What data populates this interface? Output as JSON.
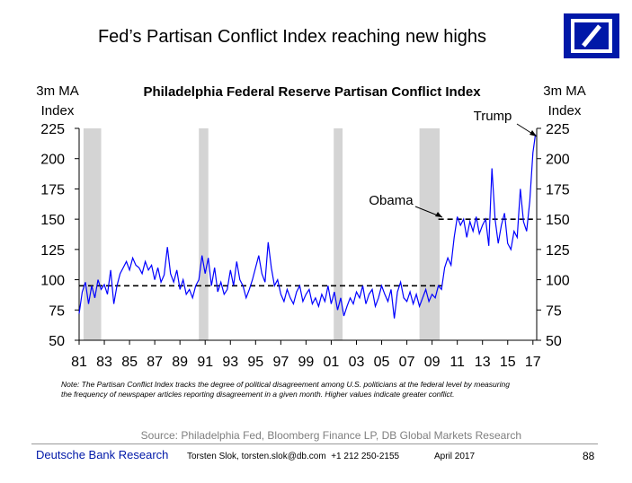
{
  "slide_title": "Fed’s Partisan Conflict Index reaching new highs",
  "chart_data": {
    "type": "line",
    "title": "Philadelphia Federal Reserve Partisan Conflict Index",
    "y_label": "3m MA\nIndex",
    "y2_label": "3m MA\nIndex",
    "color": "#0000ff",
    "x": [
      1981.0,
      1981.25,
      1981.5,
      1981.75,
      1982.0,
      1982.25,
      1982.5,
      1982.75,
      1983.0,
      1983.25,
      1983.5,
      1983.75,
      1984.0,
      1984.25,
      1984.5,
      1984.75,
      1985.0,
      1985.25,
      1985.5,
      1985.75,
      1986.0,
      1986.25,
      1986.5,
      1986.75,
      1987.0,
      1987.25,
      1987.5,
      1987.75,
      1988.0,
      1988.25,
      1988.5,
      1988.75,
      1989.0,
      1989.25,
      1989.5,
      1989.75,
      1990.0,
      1990.25,
      1990.5,
      1990.75,
      1991.0,
      1991.25,
      1991.5,
      1991.75,
      1992.0,
      1992.25,
      1992.5,
      1992.75,
      1993.0,
      1993.25,
      1993.5,
      1993.75,
      1994.0,
      1994.25,
      1994.5,
      1994.75,
      1995.0,
      1995.25,
      1995.5,
      1995.75,
      1996.0,
      1996.25,
      1996.5,
      1996.75,
      1997.0,
      1997.25,
      1997.5,
      1997.75,
      1998.0,
      1998.25,
      1998.5,
      1998.75,
      1999.0,
      1999.25,
      1999.5,
      1999.75,
      2000.0,
      2000.25,
      2000.5,
      2000.75,
      2001.0,
      2001.25,
      2001.5,
      2001.75,
      2002.0,
      2002.25,
      2002.5,
      2002.75,
      2003.0,
      2003.25,
      2003.5,
      2003.75,
      2004.0,
      2004.25,
      2004.5,
      2004.75,
      2005.0,
      2005.25,
      2005.5,
      2005.75,
      2006.0,
      2006.25,
      2006.5,
      2006.75,
      2007.0,
      2007.25,
      2007.5,
      2007.75,
      2008.0,
      2008.25,
      2008.5,
      2008.75,
      2009.0,
      2009.25,
      2009.5,
      2009.75,
      2010.0,
      2010.25,
      2010.5,
      2010.75,
      2011.0,
      2011.25,
      2011.5,
      2011.75,
      2012.0,
      2012.25,
      2012.5,
      2012.75,
      2013.0,
      2013.25,
      2013.5,
      2013.75,
      2014.0,
      2014.25,
      2014.5,
      2014.75,
      2015.0,
      2015.25,
      2015.5,
      2015.75,
      2016.0,
      2016.25,
      2016.5,
      2016.75,
      2017.0,
      2017.2
    ],
    "values": [
      72,
      90,
      98,
      80,
      95,
      85,
      100,
      92,
      96,
      88,
      108,
      80,
      95,
      105,
      110,
      115,
      108,
      118,
      112,
      110,
      105,
      115,
      108,
      112,
      100,
      110,
      98,
      104,
      127,
      105,
      98,
      108,
      92,
      100,
      88,
      92,
      85,
      95,
      100,
      120,
      105,
      118,
      95,
      110,
      90,
      98,
      88,
      92,
      108,
      95,
      115,
      100,
      95,
      85,
      92,
      100,
      110,
      120,
      105,
      98,
      131,
      110,
      95,
      100,
      88,
      82,
      92,
      85,
      80,
      90,
      95,
      82,
      88,
      92,
      80,
      85,
      78,
      88,
      82,
      95,
      80,
      90,
      75,
      85,
      70,
      78,
      85,
      80,
      90,
      85,
      95,
      80,
      88,
      92,
      78,
      85,
      95,
      88,
      82,
      92,
      68,
      90,
      98,
      85,
      82,
      90,
      80,
      88,
      78,
      85,
      92,
      82,
      88,
      85,
      95,
      92,
      110,
      118,
      112,
      135,
      152,
      145,
      150,
      135,
      148,
      140,
      152,
      138,
      145,
      150,
      128,
      192,
      150,
      130,
      145,
      155,
      130,
      125,
      140,
      135,
      175,
      148,
      140,
      165,
      205,
      220
    ],
    "xlim": [
      1981,
      2017.3
    ],
    "xticks": [
      {
        "value": 1981,
        "label": "81"
      },
      {
        "value": 1983,
        "label": "83"
      },
      {
        "value": 1985,
        "label": "85"
      },
      {
        "value": 1987,
        "label": "87"
      },
      {
        "value": 1989,
        "label": "89"
      },
      {
        "value": 1991,
        "label": "91"
      },
      {
        "value": 1993,
        "label": "93"
      },
      {
        "value": 1995,
        "label": "95"
      },
      {
        "value": 1997,
        "label": "97"
      },
      {
        "value": 1999,
        "label": "99"
      },
      {
        "value": 2001,
        "label": "01"
      },
      {
        "value": 2003,
        "label": "03"
      },
      {
        "value": 2005,
        "label": "05"
      },
      {
        "value": 2007,
        "label": "07"
      },
      {
        "value": 2009,
        "label": "09"
      },
      {
        "value": 2011,
        "label": "11"
      },
      {
        "value": 2013,
        "label": "13"
      },
      {
        "value": 2015,
        "label": "15"
      },
      {
        "value": 2017,
        "label": "17"
      }
    ],
    "ylim": [
      50,
      225
    ],
    "yticks": [
      50,
      75,
      100,
      125,
      150,
      175,
      200,
      225
    ],
    "y2lim": [
      50,
      225
    ],
    "y2ticks": [
      50,
      75,
      100,
      125,
      150,
      175,
      200,
      225
    ],
    "grid": false,
    "shaded_periods": [
      {
        "start": 1981.35,
        "end": 1982.75
      },
      {
        "start": 1990.5,
        "end": 1991.25
      },
      {
        "start": 2001.2,
        "end": 2001.9
      },
      {
        "start": 2008.0,
        "end": 2009.6
      }
    ],
    "shade_color": "#d4d4d4",
    "reference_lines": [
      {
        "start": 1981,
        "end": 2009.8,
        "value": 95
      },
      {
        "start": 2009.5,
        "end": 2017,
        "value": 150
      }
    ],
    "annotations": [
      "Obama",
      "Trump"
    ],
    "note": "Note: The Partisan Conflict Index tracks the degree of political disagreement among U.S. politicians at the federal level by measuring the frequency of newspaper articles reporting disagreement in a given month. Higher values indicate greater conflict.",
    "source": "Source: Philadelphia Fed, Bloomberg Finance LP, DB Global Markets Research"
  },
  "footer": {
    "brand": "Deutsche Bank Research",
    "author": "Torsten Slok, torsten.slok@db.com  +1 212 250-2155",
    "date": "April 2017",
    "page": "88"
  }
}
